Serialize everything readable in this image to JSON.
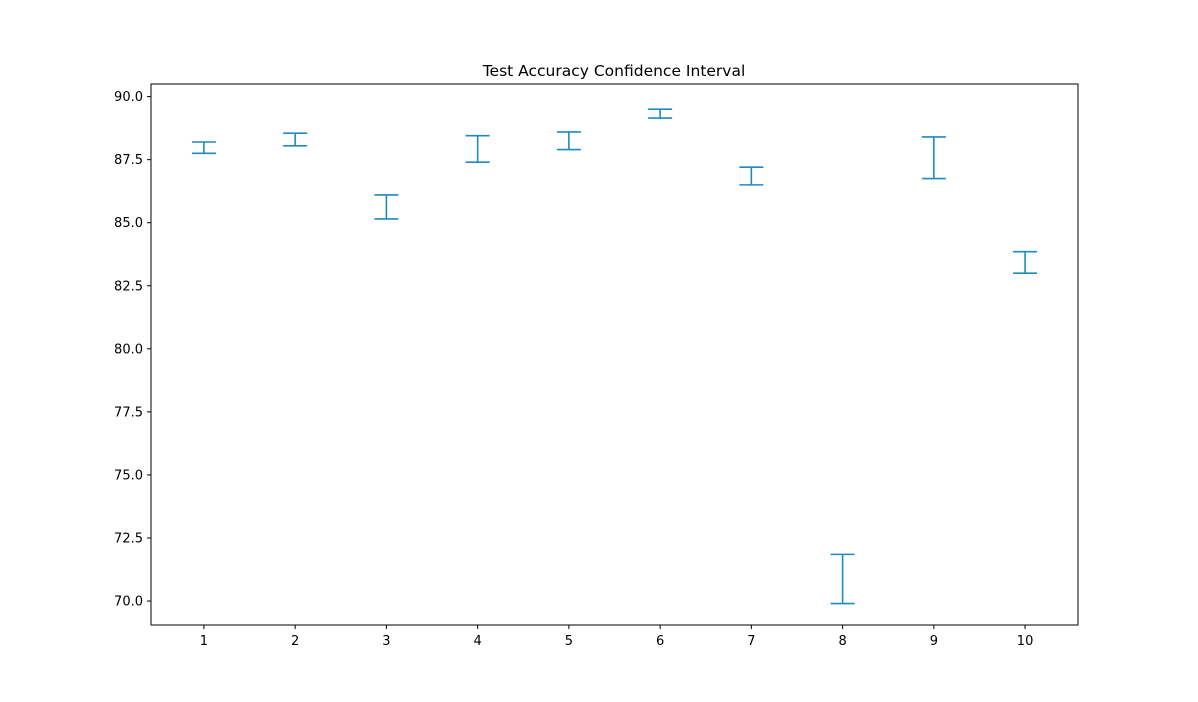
{
  "chart_data": {
    "type": "errorbar",
    "title": "Test Accuracy Confidence Interval",
    "xlabel": "",
    "ylabel": "",
    "x": [
      1,
      2,
      3,
      4,
      5,
      6,
      7,
      8,
      9,
      10
    ],
    "intervals": [
      {
        "x": 1,
        "low": 87.75,
        "high": 88.2
      },
      {
        "x": 2,
        "low": 88.05,
        "high": 88.55
      },
      {
        "x": 3,
        "low": 85.15,
        "high": 86.1
      },
      {
        "x": 4,
        "low": 87.4,
        "high": 88.45
      },
      {
        "x": 5,
        "low": 87.9,
        "high": 88.6
      },
      {
        "x": 6,
        "low": 89.15,
        "high": 89.5
      },
      {
        "x": 7,
        "low": 86.5,
        "high": 87.2
      },
      {
        "x": 8,
        "low": 69.9,
        "high": 71.85
      },
      {
        "x": 9,
        "low": 86.75,
        "high": 88.4
      },
      {
        "x": 10,
        "low": 83.0,
        "high": 83.85
      }
    ],
    "xlim": [
      0.42,
      10.58
    ],
    "ylim": [
      69.05,
      90.5
    ],
    "xticks": [
      "1",
      "2",
      "3",
      "4",
      "5",
      "6",
      "7",
      "8",
      "9",
      "10"
    ],
    "yticks": [
      "70.0",
      "72.5",
      "75.0",
      "77.5",
      "80.0",
      "82.5",
      "85.0",
      "87.5",
      "90.0"
    ],
    "ytick_values": [
      70.0,
      72.5,
      75.0,
      77.5,
      80.0,
      82.5,
      85.0,
      87.5,
      90.0
    ],
    "grid": false,
    "color": "#1f8ac0"
  }
}
